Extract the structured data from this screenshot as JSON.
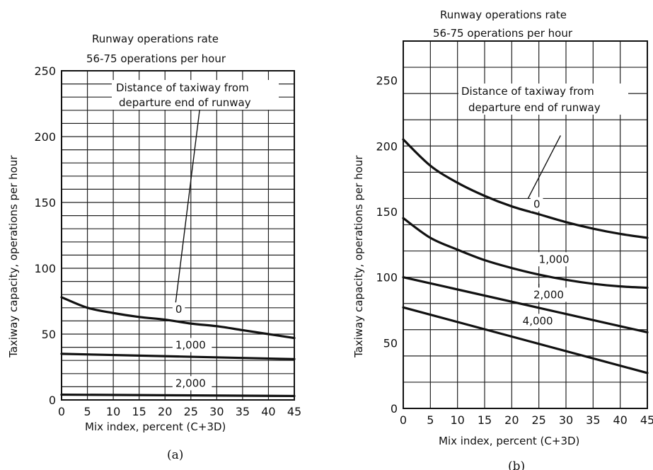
{
  "chart_data": [
    {
      "panel": "(a)",
      "type": "line",
      "title": [
        "Runway operations rate",
        "56-75 operations per hour"
      ],
      "annotation": [
        "Distance of taxiway from",
        "departure end of runway"
      ],
      "xlabel": "Mix index, percent (C+3D)",
      "ylabel": "Taxiway capacity, operations per hour",
      "xlim": [
        0,
        45
      ],
      "ylim": [
        0,
        250
      ],
      "xticks": [
        0,
        5,
        10,
        15,
        20,
        25,
        30,
        35,
        40,
        45
      ],
      "yticks": [
        0,
        50,
        100,
        150,
        200,
        250
      ],
      "xgrid_step": 5,
      "ygrid_step": 10,
      "grid": true,
      "series": [
        {
          "name": "0",
          "x": [
            0,
            5,
            10,
            15,
            20,
            25,
            30,
            35,
            40,
            45
          ],
          "y": [
            78,
            70,
            66,
            63,
            61,
            58,
            56,
            53,
            50,
            47
          ]
        },
        {
          "name": "1,000",
          "x": [
            0,
            45
          ],
          "y": [
            35,
            31
          ]
        },
        {
          "name": "2,000",
          "x": [
            0,
            45
          ],
          "y": [
            4,
            3
          ]
        }
      ]
    },
    {
      "panel": "(b)",
      "type": "line",
      "title": [
        "Runway operations rate",
        "56-75 operations per hour"
      ],
      "annotation": [
        "Distance of taxiway from",
        "departure end of runway"
      ],
      "xlabel": "Mix index, percent (C+3D)",
      "ylabel": "Taxiway capacity, operations per hour",
      "xlim": [
        0,
        45
      ],
      "ylim": [
        0,
        280
      ],
      "xticks": [
        0,
        5,
        10,
        15,
        20,
        25,
        30,
        35,
        40,
        45
      ],
      "yticks": [
        0,
        50,
        100,
        150,
        200,
        250
      ],
      "xgrid_step": 5,
      "ygrid_step": 20,
      "grid": true,
      "series": [
        {
          "name": "0",
          "x": [
            0,
            5,
            10,
            15,
            20,
            25,
            30,
            35,
            40,
            45
          ],
          "y": [
            205,
            185,
            172,
            162,
            154,
            148,
            142,
            137,
            133,
            130
          ]
        },
        {
          "name": "1,000",
          "x": [
            0,
            5,
            10,
            15,
            20,
            25,
            30,
            35,
            40,
            45
          ],
          "y": [
            145,
            130,
            121,
            113,
            107,
            102,
            98,
            95,
            93,
            92
          ]
        },
        {
          "name": "2,000",
          "x": [
            0,
            45
          ],
          "y": [
            100,
            58
          ]
        },
        {
          "name": "4,000",
          "x": [
            0,
            45
          ],
          "y": [
            77,
            27
          ]
        }
      ]
    }
  ]
}
